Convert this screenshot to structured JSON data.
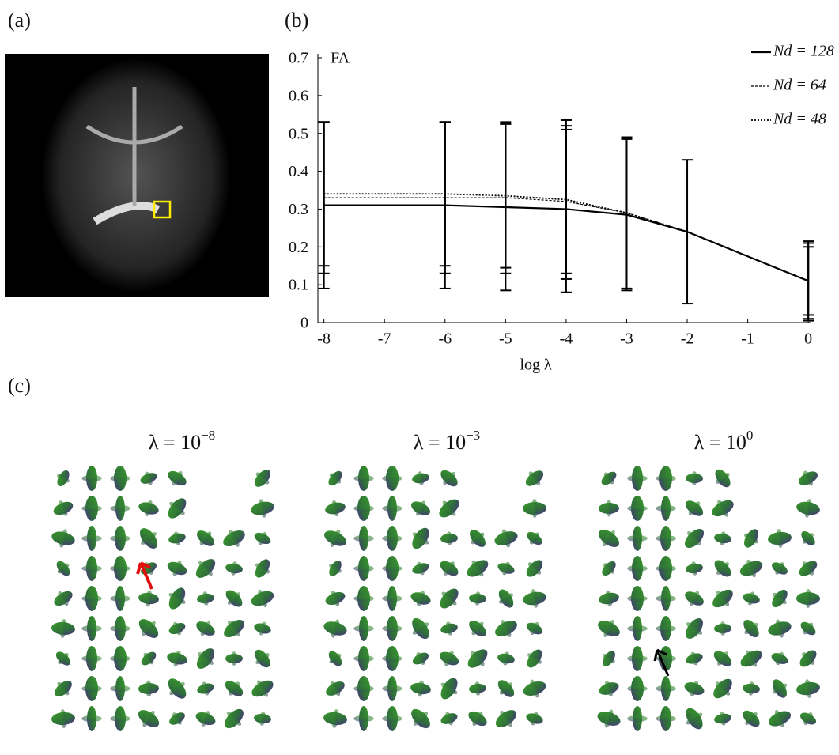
{
  "panels": {
    "a": "(a)",
    "b": "(b)",
    "c": "(c)"
  },
  "glyph_titles": [
    {
      "base": "λ = 10",
      "exponent": "−8"
    },
    {
      "base": "λ = 10",
      "exponent": "−3"
    },
    {
      "base": "λ = 10",
      "exponent": "0"
    }
  ],
  "chart_data": {
    "type": "line",
    "ylabel": "FA",
    "xlabel": "log λ",
    "x": [
      -8,
      -7,
      -6,
      -5,
      -4,
      -3,
      -2,
      -1,
      0
    ],
    "series": [
      {
        "name": "Nd = 128",
        "color": "#000000",
        "dash": "none",
        "width": 2.2,
        "values": [
          0.31,
          0.31,
          0.31,
          0.305,
          0.3,
          0.285,
          0.24,
          0.175,
          0.11
        ],
        "errors": [
          0.22,
          null,
          0.22,
          0.22,
          0.22,
          0.2,
          0.19,
          null,
          0.105
        ]
      },
      {
        "name": "Nd = 64",
        "color": "#000000",
        "dash": "3,2",
        "width": 1.2,
        "values": [
          0.33,
          0.33,
          0.33,
          0.33,
          0.32,
          0.29,
          0.24,
          0.175,
          0.11
        ],
        "errors": [
          0.2,
          null,
          0.2,
          0.2,
          0.19,
          0.2,
          null,
          null,
          0.09
        ]
      },
      {
        "name": "Nd = 48",
        "color": "#000000",
        "dash": "2,2",
        "width": 1.8,
        "values": [
          0.34,
          0.34,
          0.34,
          0.335,
          0.325,
          0.29,
          0.24,
          0.175,
          0.11
        ],
        "errors": [
          0.19,
          null,
          0.19,
          0.19,
          0.21,
          0.2,
          null,
          null,
          0.1
        ]
      }
    ],
    "xlim": [
      -8.1,
      0.05
    ],
    "ylim": [
      0,
      0.7
    ],
    "xticks": [
      -8,
      -7,
      -6,
      -5,
      -4,
      -3,
      -2,
      -1,
      0
    ],
    "yticks": [
      0,
      0.1,
      0.2,
      0.3,
      0.4,
      0.5,
      0.6,
      0.7
    ],
    "legend": "top-right"
  }
}
